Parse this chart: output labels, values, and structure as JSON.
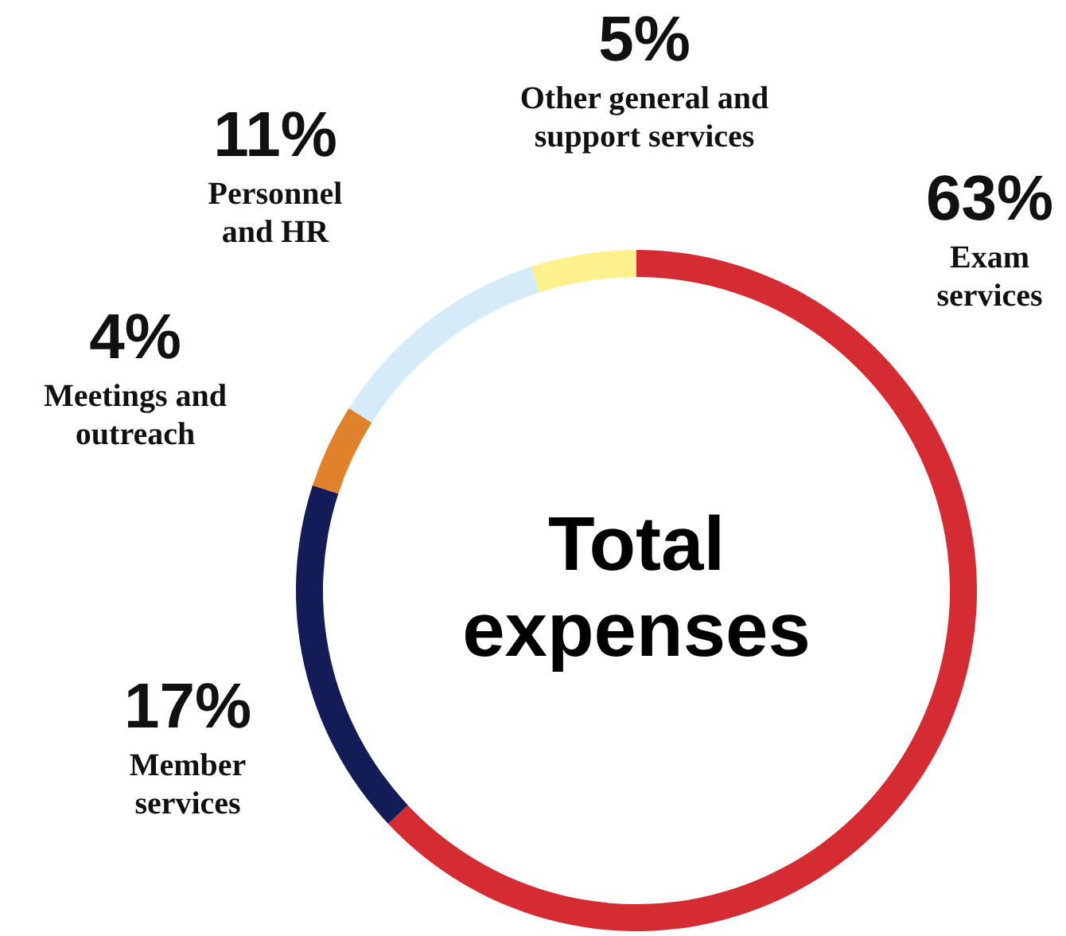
{
  "chart_data": {
    "type": "donut",
    "title": "Total expenses",
    "categories": [
      "Exam services",
      "Member services",
      "Meetings and outreach",
      "Personnel and HR",
      "Other general and support services"
    ],
    "values": [
      63,
      17,
      4,
      11,
      5
    ],
    "value_labels": [
      "63%",
      "17%",
      "4%",
      "11%",
      "5%"
    ],
    "colors": [
      "#d52b33",
      "#141c57",
      "#e0812b",
      "#d4ecf9",
      "#fdf18e"
    ]
  }
}
